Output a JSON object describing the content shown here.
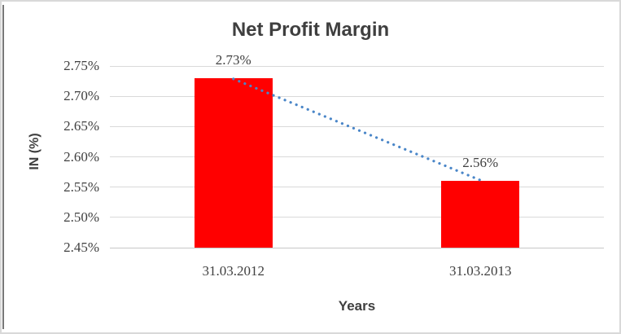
{
  "window": {
    "background": "#ffffff",
    "frame_border_color": "#d9d9d9",
    "left_edge_color": "#787878"
  },
  "chart_data": {
    "type": "bar",
    "title": "Net Profit Margin",
    "xlabel": "Years",
    "ylabel": "IN (%)",
    "categories": [
      "31.03.2012",
      "31.03.2013"
    ],
    "values": [
      2.73,
      2.56
    ],
    "data_labels": [
      "2.73%",
      "2.56%"
    ],
    "yticks": [
      "2.45%",
      "2.50%",
      "2.55%",
      "2.60%",
      "2.65%",
      "2.70%",
      "2.75%"
    ],
    "ylim": [
      2.45,
      2.75
    ],
    "ytick_step": 0.05,
    "grid": true,
    "legend": "none",
    "bar_color": "#ff0000",
    "gridline_color": "#d9d9d9",
    "axis_line_color": "#c6c6c6",
    "text_color": "#404040",
    "title_color": "#3f3f3f",
    "trendline": {
      "type": "linear",
      "style": "dotted",
      "color": "#4a86c8",
      "from_value": 2.73,
      "to_value": 2.56
    }
  }
}
